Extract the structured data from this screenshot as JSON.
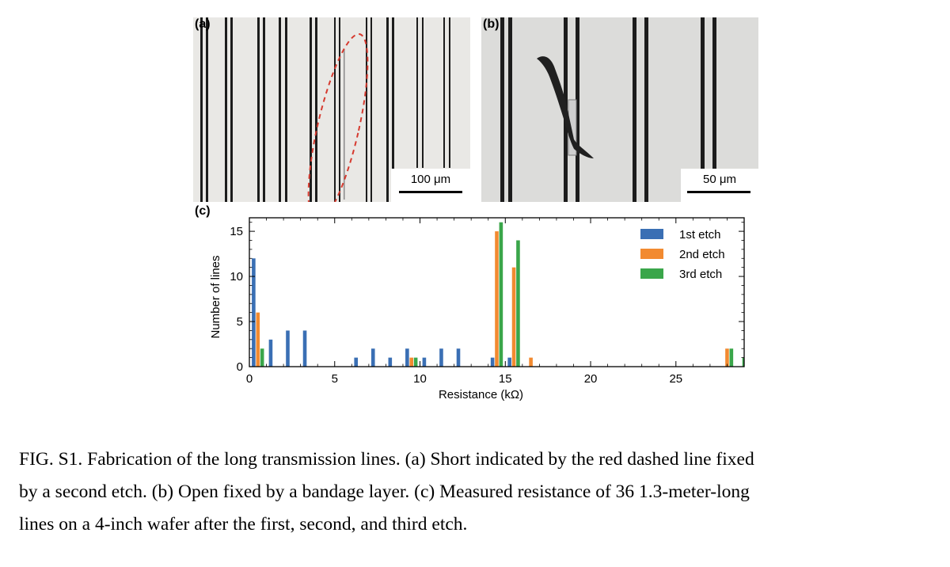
{
  "panels": {
    "a": {
      "label": "(a)",
      "scale_text": "100 μm"
    },
    "b": {
      "label": "(b)",
      "scale_text": "50 μm"
    },
    "c": {
      "label": "(c)"
    }
  },
  "colors": {
    "etch1": "#3a6fb4",
    "etch2": "#f28a30",
    "etch3": "#3aa64a",
    "short_marker": "#d63a2f"
  },
  "chart_data": {
    "type": "bar",
    "xlabel": "Resistance (kΩ)",
    "ylabel": "Number of lines",
    "xlim": [
      0,
      29
    ],
    "ylim": [
      0,
      16.5
    ],
    "xticks": [
      0,
      5,
      10,
      15,
      20,
      25
    ],
    "yticks": [
      0,
      5,
      10,
      15
    ],
    "legend_position": "top-right",
    "series": [
      {
        "name": "1st etch",
        "color": "#3a6fb4",
        "x": [
          0.25,
          1.25,
          2.25,
          3.25,
          6.25,
          7.25,
          8.25,
          9.25,
          10.25,
          11.25,
          12.25,
          14.25,
          15.25
        ],
        "values": [
          12,
          3,
          4,
          4,
          1,
          2,
          1,
          2,
          1,
          2,
          2,
          1,
          1
        ]
      },
      {
        "name": "2nd etch",
        "color": "#f28a30",
        "x": [
          0.5,
          9.5,
          14.5,
          15.5,
          16.5,
          28.0
        ],
        "values": [
          6,
          1,
          15,
          11,
          1,
          2
        ]
      },
      {
        "name": "3rd etch",
        "color": "#3aa64a",
        "x": [
          0.75,
          9.75,
          14.75,
          15.75,
          28.25,
          29.0
        ],
        "values": [
          2,
          1,
          16,
          14,
          2,
          1
        ]
      }
    ]
  },
  "caption": {
    "line1": "FIG. S1. Fabrication of the long transmission lines. (a) Short indicated by the red dashed line fixed",
    "line2": "by a second etch. (b) Open fixed by a bandage layer. (c) Measured resistance of 36 1.3-meter-long",
    "line3": "lines on a 4-inch wafer after the first, second, and third etch."
  }
}
